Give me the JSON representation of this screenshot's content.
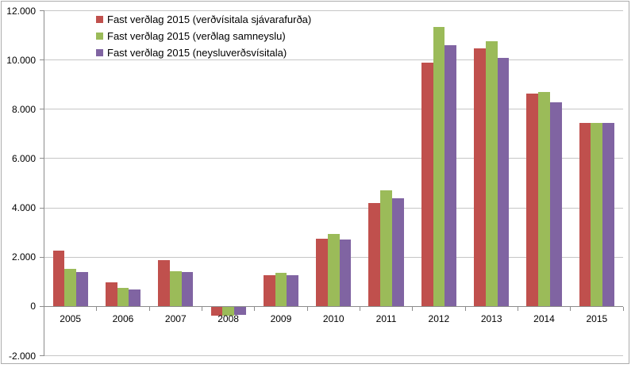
{
  "page": {
    "background": "#FFFFFF",
    "border_color": "#ACACAC"
  },
  "chart_data": {
    "type": "bar",
    "title": "",
    "xlabel": "",
    "ylabel": "",
    "categories": [
      "2005",
      "2006",
      "2007",
      "2008",
      "2009",
      "2010",
      "2011",
      "2012",
      "2013",
      "2014",
      "2015"
    ],
    "series": [
      {
        "name": "Fast verðlag 2015 (verðvísitala sjávarafurða)",
        "color": "#C0504D",
        "values": [
          2250,
          990,
          1890,
          -390,
          1270,
          2760,
          4200,
          9900,
          10460,
          8650,
          7430
        ]
      },
      {
        "name": "Fast verðlag 2015 (verðlag samneyslu)",
        "color": "#9BBB59",
        "values": [
          1510,
          760,
          1440,
          -375,
          1350,
          2930,
          4720,
          11330,
          10760,
          8700,
          7430
        ]
      },
      {
        "name": "Fast verðlag 2015 (neysluverðsvísitala)",
        "color": "#8064A2",
        "values": [
          1400,
          690,
          1380,
          -350,
          1270,
          2700,
          4380,
          10600,
          10070,
          8290,
          7430
        ]
      }
    ],
    "y_axis": {
      "min": -2000,
      "max": 12000,
      "step": 2000,
      "tick_labels": [
        "-2.000",
        "0",
        "2.000",
        "4.000",
        "6.000",
        "8.000",
        "10.000",
        "12.000"
      ]
    },
    "ylim": [
      -2000,
      12000
    ],
    "grid": true,
    "legend_position": "top-left-inside",
    "colors": {
      "gridline": "#C6C6C6",
      "axis": "#8C8C8C",
      "text": "#000000"
    }
  }
}
